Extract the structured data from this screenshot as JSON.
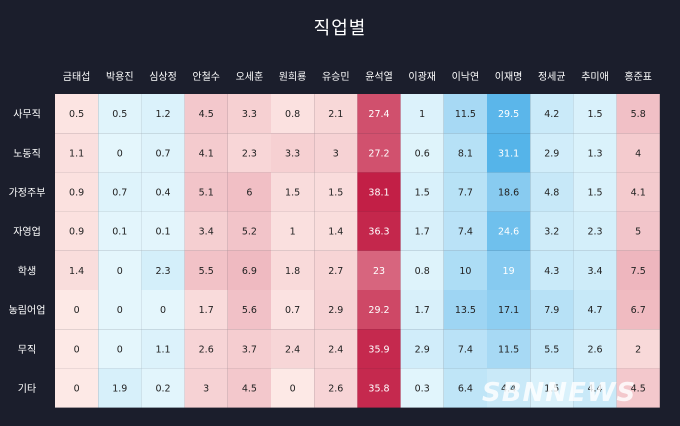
{
  "chart_data": {
    "type": "heatmap",
    "title": "직업별",
    "columns": [
      "금태섭",
      "박용진",
      "심상정",
      "안철수",
      "오세훈",
      "원희룡",
      "유승민",
      "윤석열",
      "이광재",
      "이낙연",
      "이재명",
      "정세균",
      "추미애",
      "홍준표"
    ],
    "rows": [
      "사무직",
      "노동직",
      "가정주부",
      "자영업",
      "학생",
      "농림어업",
      "무직",
      "기타"
    ],
    "values": [
      [
        0.5,
        0.5,
        1.2,
        4.5,
        3.3,
        0.8,
        2.1,
        27.4,
        1,
        11.5,
        29.5,
        4.2,
        1.5,
        5.8
      ],
      [
        1.1,
        0,
        0.7,
        4.1,
        2.3,
        3.3,
        3,
        27.2,
        0.6,
        8.1,
        31.1,
        2.9,
        1.3,
        4
      ],
      [
        0.9,
        0.7,
        0.4,
        5.1,
        6,
        1.5,
        1.5,
        38.1,
        1.5,
        7.7,
        18.6,
        4.8,
        1.5,
        4.1
      ],
      [
        0.9,
        0.1,
        0.1,
        3.4,
        5.2,
        1,
        1.4,
        36.3,
        1.7,
        7.4,
        24.6,
        3.2,
        2.3,
        5
      ],
      [
        1.4,
        0,
        2.3,
        5.5,
        6.9,
        1.8,
        2.7,
        23,
        0.8,
        10,
        19,
        4.3,
        3.4,
        7.5
      ],
      [
        0,
        0,
        0,
        1.7,
        5.6,
        0.7,
        2.9,
        29.2,
        1.7,
        13.5,
        17.1,
        7.9,
        4.7,
        6.7
      ],
      [
        0,
        0,
        1.1,
        2.6,
        3.7,
        2.4,
        2.4,
        35.9,
        2.9,
        7.4,
        11.5,
        5.5,
        2.6,
        2
      ],
      [
        0,
        1.9,
        0.2,
        3,
        4.5,
        0,
        2.6,
        35.8,
        0.3,
        6.4,
        4.4,
        1.5,
        4.4,
        4.5
      ]
    ],
    "column_color_group": [
      "red",
      "blue",
      "blue",
      "red",
      "red",
      "red",
      "red",
      "red",
      "blue",
      "blue",
      "blue",
      "blue",
      "blue",
      "red"
    ],
    "colors": {
      "red_scale_low": "#fde9e6",
      "red_scale_high": "#c21f46",
      "blue_scale_low": "#e4f6fc",
      "blue_scale_high": "#3aa7e6",
      "background": "#1b1e2c"
    },
    "watermark": "SBNNEWS"
  }
}
